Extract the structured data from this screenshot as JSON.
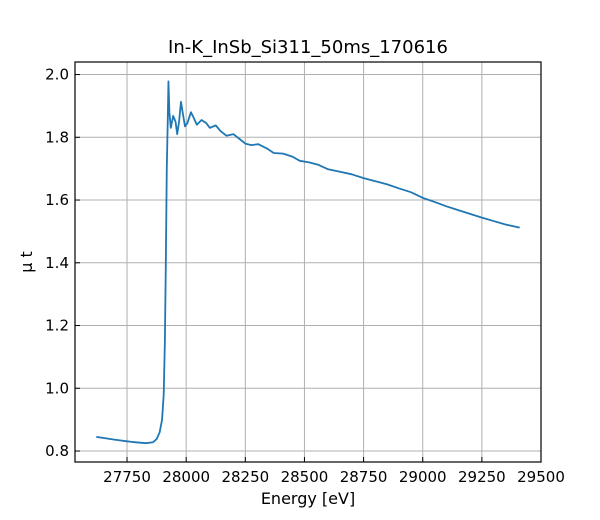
{
  "chart_data": {
    "type": "line",
    "title": "In-K_InSb_Si311_50ms_170616",
    "xlabel": "Energy [eV]",
    "ylabel": "μ t",
    "xlim": [
      27530,
      29500
    ],
    "ylim": [
      0.765,
      2.04
    ],
    "xticks": [
      27750,
      28000,
      28250,
      28500,
      28750,
      29000,
      29250,
      29500
    ],
    "yticks": [
      0.8,
      1.0,
      1.2,
      1.4,
      1.6,
      1.8,
      2.0
    ],
    "grid": true,
    "tick_direction": "in",
    "series": [
      {
        "color": "#1f77b4",
        "points": [
          [
            27620,
            0.845
          ],
          [
            27700,
            0.836
          ],
          [
            27770,
            0.829
          ],
          [
            27830,
            0.825
          ],
          [
            27860,
            0.828
          ],
          [
            27875,
            0.838
          ],
          [
            27888,
            0.86
          ],
          [
            27898,
            0.9
          ],
          [
            27905,
            0.98
          ],
          [
            27910,
            1.15
          ],
          [
            27914,
            1.4
          ],
          [
            27918,
            1.7
          ],
          [
            27922,
            1.85
          ],
          [
            27925,
            1.978
          ],
          [
            27929,
            1.88
          ],
          [
            27935,
            1.83
          ],
          [
            27945,
            1.868
          ],
          [
            27955,
            1.85
          ],
          [
            27962,
            1.81
          ],
          [
            27970,
            1.85
          ],
          [
            27978,
            1.913
          ],
          [
            27986,
            1.875
          ],
          [
            27995,
            1.835
          ],
          [
            28005,
            1.845
          ],
          [
            28020,
            1.88
          ],
          [
            28030,
            1.865
          ],
          [
            28045,
            1.84
          ],
          [
            28065,
            1.855
          ],
          [
            28085,
            1.845
          ],
          [
            28100,
            1.83
          ],
          [
            28125,
            1.838
          ],
          [
            28145,
            1.82
          ],
          [
            28170,
            1.805
          ],
          [
            28200,
            1.81
          ],
          [
            28225,
            1.795
          ],
          [
            28250,
            1.78
          ],
          [
            28275,
            1.775
          ],
          [
            28305,
            1.778
          ],
          [
            28340,
            1.765
          ],
          [
            28370,
            1.75
          ],
          [
            28410,
            1.748
          ],
          [
            28450,
            1.738
          ],
          [
            28480,
            1.725
          ],
          [
            28520,
            1.72
          ],
          [
            28560,
            1.712
          ],
          [
            28600,
            1.698
          ],
          [
            28650,
            1.69
          ],
          [
            28700,
            1.682
          ],
          [
            28750,
            1.67
          ],
          [
            28800,
            1.66
          ],
          [
            28850,
            1.65
          ],
          [
            28900,
            1.637
          ],
          [
            28950,
            1.625
          ],
          [
            29000,
            1.607
          ],
          [
            29050,
            1.594
          ],
          [
            29100,
            1.58
          ],
          [
            29150,
            1.568
          ],
          [
            29200,
            1.556
          ],
          [
            29250,
            1.544
          ],
          [
            29300,
            1.533
          ],
          [
            29350,
            1.522
          ],
          [
            29410,
            1.512
          ]
        ]
      }
    ]
  }
}
